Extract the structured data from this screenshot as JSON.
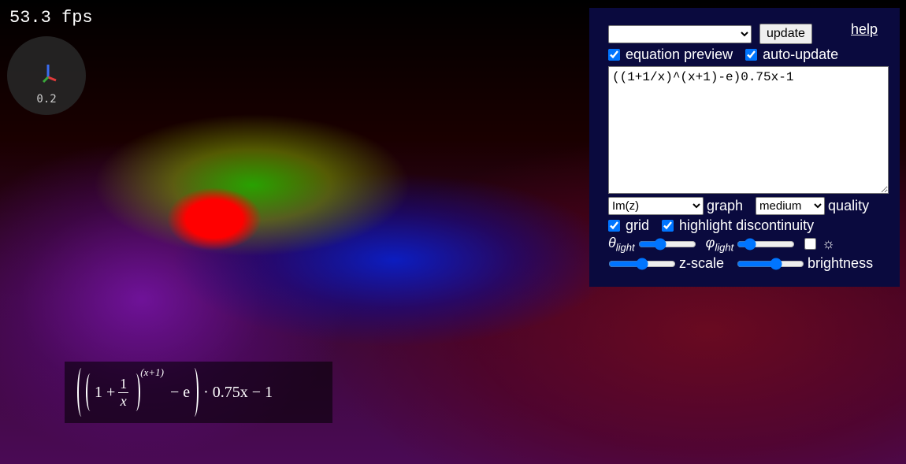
{
  "fps": "53.3 fps",
  "axis_widget": {
    "scale": "0.2"
  },
  "panel": {
    "update_button": "update",
    "help_link": "help",
    "options": [
      {
        "label": "equation preview",
        "checked": true
      },
      {
        "label": "auto-update",
        "checked": true
      }
    ],
    "equation_input": "((1+1/x)^(x+1)-e)0.75x-1",
    "graph_select": "Im(z)",
    "graph_label": "graph",
    "quality_select": "medium",
    "quality_label": "quality",
    "display_options": [
      {
        "label": "grid",
        "checked": true
      },
      {
        "label": "highlight discontinuity",
        "checked": true
      }
    ],
    "theta_light": {
      "symbol": "θ",
      "sub": "light"
    },
    "phi_light": {
      "symbol": "φ",
      "sub": "light"
    },
    "light_toggle": {
      "checked": false,
      "icon": "☼"
    },
    "z_scale_label": "z-scale",
    "brightness_label": "brightness"
  },
  "equation_preview": {
    "one_plus": "1 +",
    "numerator": "1",
    "denominator": "x",
    "exponent": "(x+1)",
    "minus_e": "− e",
    "tail": "· 0.75x − 1"
  }
}
